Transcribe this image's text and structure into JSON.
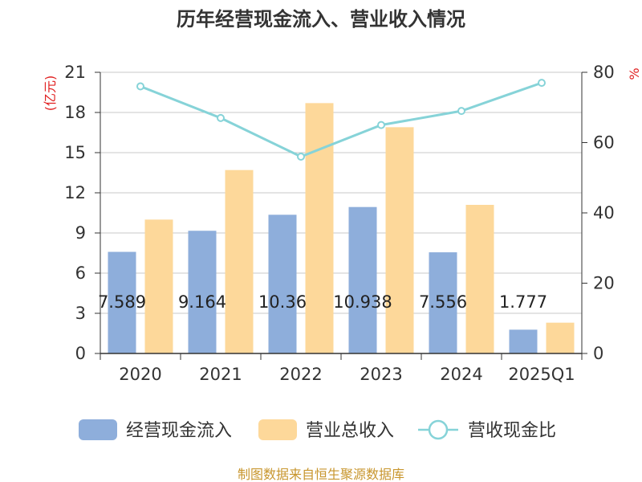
{
  "chart_data": {
    "type": "bar",
    "title": "历年经营现金流入、营业收入情况",
    "categories": [
      "2020",
      "2021",
      "2022",
      "2023",
      "2024",
      "2025Q1"
    ],
    "y_left_unit": "(亿元)",
    "y_right_unit": "%",
    "ylim_left": [
      0,
      21
    ],
    "yticks_left": [
      0,
      3,
      6,
      9,
      12,
      15,
      18,
      21
    ],
    "ylim_right": [
      0,
      80
    ],
    "yticks_right": [
      0,
      20,
      40,
      60,
      80
    ],
    "grid": true,
    "legend_position": "bottom",
    "series": [
      {
        "name": "经营现金流入",
        "type": "bar",
        "axis": "left",
        "color": "#8eaedb",
        "values": [
          7.589,
          9.164,
          10.36,
          10.938,
          7.556,
          1.777
        ],
        "labels": [
          "7.589",
          "9.164",
          "10.36",
          "10.938",
          "7.556",
          "1.777"
        ]
      },
      {
        "name": "营业总收入",
        "type": "bar",
        "axis": "left",
        "color": "#fdd89a",
        "values": [
          10.0,
          13.7,
          18.7,
          16.9,
          11.1,
          2.3
        ]
      },
      {
        "name": "营收现金比",
        "type": "line",
        "axis": "right",
        "color": "#86d3d8",
        "values": [
          76,
          67,
          56,
          65,
          69,
          77
        ]
      }
    ],
    "source": "制图数据来自恒生聚源数据库"
  }
}
